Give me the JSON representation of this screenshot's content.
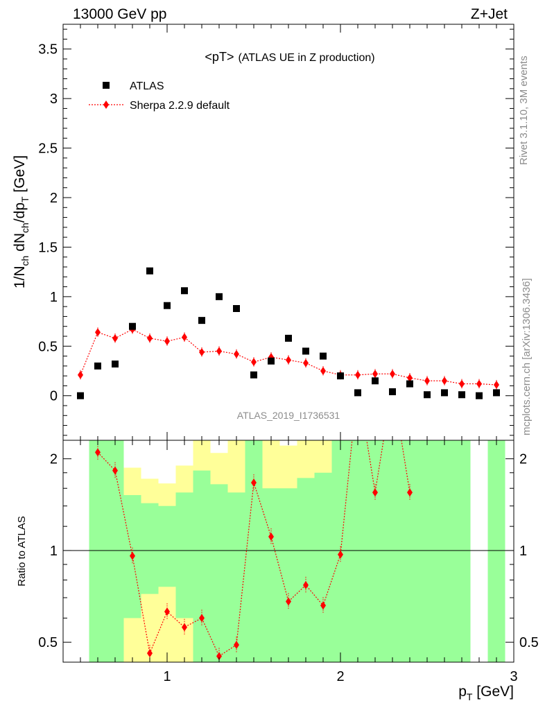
{
  "header": {
    "left": "13000 GeV pp",
    "right": "Z+Jet"
  },
  "side_labels": {
    "top": "Rivet 3.1.10,  3M events",
    "bottom": "mcplots.cern.ch [arXiv:1306.3436]"
  },
  "colors": {
    "atlas": "#000000",
    "sherpa": "#ff0000",
    "band_green": "#99ff99",
    "band_yellow": "#ffff99"
  },
  "chart_data": [
    {
      "type": "scatter",
      "title": "<pT> (ATLAS UE in Z production)",
      "title_main": "<pT>",
      "title_rest": "(ATLAS UE in Z production)",
      "ylabel": "1/N_ch dN_ch/dp_T [GeV]",
      "ylabel_parts": {
        "a": "1/N",
        "b": "ch",
        "c": " dN",
        "d": "ch",
        "e": "/dp",
        "f": "T",
        "g": " [GeV]"
      },
      "watermark": "ATLAS_2019_I1736531",
      "xlim": [
        0.4,
        3.0
      ],
      "ylim": [
        -0.45,
        3.75
      ],
      "yticks": [
        0,
        0.5,
        1,
        1.5,
        2,
        2.5,
        3,
        3.5
      ],
      "ytick_labels": [
        "0",
        "0.5",
        "1",
        "1.5",
        "2",
        "2.5",
        "3",
        "3.5"
      ],
      "legend": [
        "ATLAS",
        "Sherpa 2.2.9 default"
      ],
      "legend_position": "top-left",
      "x": [
        0.5,
        0.6,
        0.7,
        0.8,
        0.9,
        1.0,
        1.1,
        1.2,
        1.3,
        1.4,
        1.5,
        1.6,
        1.7,
        1.8,
        1.9,
        2.0,
        2.1,
        2.2,
        2.3,
        2.4,
        2.5,
        2.6,
        2.7,
        2.8,
        2.9
      ],
      "series": [
        {
          "name": "ATLAS",
          "values": [
            0.0,
            0.3,
            0.32,
            0.7,
            1.26,
            0.91,
            1.06,
            0.76,
            1.0,
            0.88,
            0.21,
            0.35,
            0.58,
            0.45,
            0.4,
            0.2,
            0.03,
            0.15,
            0.04,
            0.12,
            0.01,
            0.03,
            0.01,
            0.0,
            0.03
          ]
        },
        {
          "name": "Sherpa 2.2.9 default",
          "values": [
            0.21,
            0.64,
            0.58,
            0.67,
            0.58,
            0.55,
            0.59,
            0.44,
            0.45,
            0.42,
            0.34,
            0.39,
            0.36,
            0.33,
            0.25,
            0.21,
            0.21,
            0.22,
            0.22,
            0.18,
            0.15,
            0.15,
            0.12,
            0.12,
            0.11
          ]
        }
      ]
    },
    {
      "type": "line",
      "ylabel": "Ratio to ATLAS",
      "xlabel": "p_T [GeV]",
      "xlabel_parts": {
        "a": "p",
        "b": "T",
        "c": " [GeV]"
      },
      "scale": "log",
      "ylim": [
        0.43,
        2.3
      ],
      "xticks": [
        1,
        2,
        3
      ],
      "xtick_labels": [
        "1",
        "2",
        "3"
      ],
      "yticks": [
        0.5,
        1,
        2
      ],
      "ytick_labels": [
        "0.5",
        "1",
        "2"
      ],
      "reference_line": 1,
      "x": [
        0.6,
        0.7,
        0.8,
        0.9,
        1.0,
        1.1,
        1.2,
        1.3,
        1.4,
        1.5,
        1.6,
        1.7,
        1.8,
        1.9,
        2.0,
        2.1,
        2.2,
        2.3,
        2.4
      ],
      "series": [
        {
          "name": "Sherpa 2.2.9 default",
          "values": [
            2.1,
            1.83,
            0.96,
            0.46,
            0.63,
            0.56,
            0.6,
            0.45,
            0.49,
            1.67,
            1.11,
            0.68,
            0.77,
            0.66,
            0.97,
            3.5,
            1.55,
            3.5,
            1.55
          ]
        }
      ],
      "bands": {
        "x_edges": [
          0.55,
          0.65,
          0.75,
          0.85,
          0.95,
          1.05,
          1.15,
          1.25,
          1.35,
          1.45,
          1.55,
          1.65,
          1.75,
          1.85,
          1.95,
          2.05,
          2.15,
          2.25,
          2.35,
          2.45,
          2.55,
          2.65,
          2.75,
          2.85,
          2.95
        ],
        "green": [
          [
            0.43,
            2.3
          ],
          [
            0.43,
            2.3
          ],
          [
            0.6,
            1.52
          ],
          [
            0.72,
            1.43
          ],
          [
            0.76,
            1.4
          ],
          [
            0.6,
            1.55
          ],
          [
            0.43,
            1.83
          ],
          [
            0.43,
            1.65
          ],
          [
            0.43,
            1.55
          ],
          [
            0.43,
            2.3
          ],
          [
            0.43,
            1.6
          ],
          [
            0.43,
            1.6
          ],
          [
            0.43,
            1.73
          ],
          [
            0.43,
            1.8
          ],
          [
            0.43,
            2.3
          ],
          [
            0.43,
            2.3
          ],
          [
            0.43,
            2.3
          ],
          [
            0.43,
            2.3
          ],
          [
            0.43,
            2.3
          ],
          [
            0.43,
            2.3
          ],
          [
            0.43,
            2.3
          ],
          [
            0.43,
            2.3
          ],
          null,
          [
            0.43,
            2.3
          ]
        ],
        "yellow": [
          [
            0.43,
            2.3
          ],
          [
            0.43,
            2.3
          ],
          [
            0.43,
            1.87
          ],
          [
            0.43,
            1.72
          ],
          [
            0.43,
            1.66
          ],
          [
            0.43,
            1.9
          ],
          [
            0.43,
            2.3
          ],
          [
            0.43,
            2.09
          ],
          [
            0.43,
            2.3
          ],
          [
            0.43,
            2.3
          ],
          [
            0.43,
            2.3
          ],
          [
            0.43,
            2.21
          ],
          [
            0.43,
            2.3
          ],
          [
            0.43,
            2.3
          ],
          [
            0.43,
            2.3
          ],
          [
            0.43,
            2.3
          ],
          [
            0.43,
            2.3
          ],
          [
            0.43,
            2.3
          ],
          [
            0.43,
            2.3
          ],
          [
            0.43,
            2.3
          ],
          [
            0.43,
            2.3
          ],
          [
            0.43,
            2.3
          ],
          null,
          [
            0.43,
            2.3
          ]
        ]
      }
    }
  ]
}
